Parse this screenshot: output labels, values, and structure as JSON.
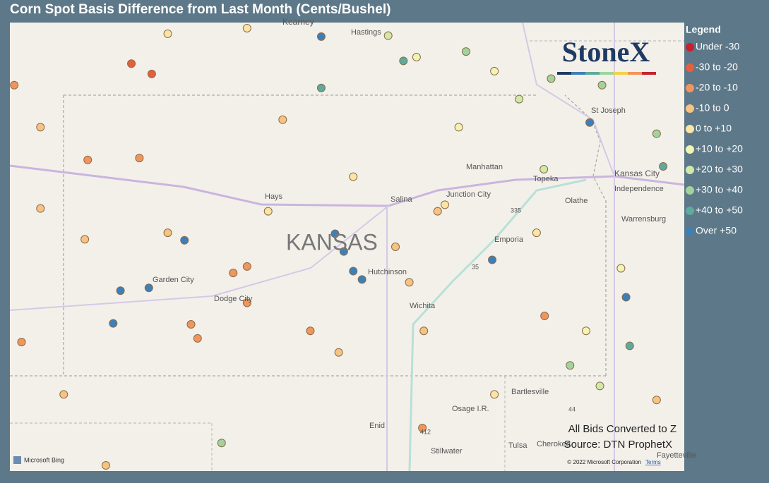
{
  "title": "Corn Spot Basis Difference from Last Month (Cents/Bushel)",
  "legend": {
    "title": "Legend",
    "bins": [
      {
        "name": "Under -30",
        "color": "#c8202c"
      },
      {
        "name": "-30 to -20",
        "color": "#e4603c"
      },
      {
        "name": "-20 to -10",
        "color": "#f0965c"
      },
      {
        "name": "-10 to 0",
        "color": "#f6c480"
      },
      {
        "name": "0 to +10",
        "color": "#fbe4a4"
      },
      {
        "name": "+10 to +20",
        "color": "#f2f4b2"
      },
      {
        "name": "+20 to +30",
        "color": "#d0e8a8"
      },
      {
        "name": "+30 to +40",
        "color": "#a0d49c"
      },
      {
        "name": "+40 to +50",
        "color": "#5eaa9c"
      },
      {
        "name": "Over +50",
        "color": "#3d80b8"
      }
    ]
  },
  "map": {
    "lonlim": [
      -102.79,
      -93.52
    ],
    "latlim": [
      35.98,
      40.78
    ],
    "points": [
      {
        "lon": -101.12,
        "lat": 40.34,
        "bin": 1
      },
      {
        "lon": -100.84,
        "lat": 40.23,
        "bin": 1
      },
      {
        "lon": -102.73,
        "lat": 40.11,
        "bin": 2
      },
      {
        "lon": -101.72,
        "lat": 39.31,
        "bin": 2
      },
      {
        "lon": -101.01,
        "lat": 39.33,
        "bin": 2
      },
      {
        "lon": -102.37,
        "lat": 38.79,
        "bin": 3
      },
      {
        "lon": -100.62,
        "lat": 38.53,
        "bin": 3
      },
      {
        "lon": -99.53,
        "lat": 38.17,
        "bin": 2
      },
      {
        "lon": -99.72,
        "lat": 38.1,
        "bin": 2
      },
      {
        "lon": -101.27,
        "lat": 37.91,
        "bin": 9
      },
      {
        "lon": -100.88,
        "lat": 37.94,
        "bin": 9
      },
      {
        "lon": -101.37,
        "lat": 37.56,
        "bin": 9
      },
      {
        "lon": -100.39,
        "lat": 38.45,
        "bin": 9
      },
      {
        "lon": -98.51,
        "lat": 40.63,
        "bin": 9
      },
      {
        "lon": -98.32,
        "lat": 38.52,
        "bin": 9
      },
      {
        "lon": -98.2,
        "lat": 38.33,
        "bin": 9
      },
      {
        "lon": -98.07,
        "lat": 38.12,
        "bin": 9
      },
      {
        "lon": -97.95,
        "lat": 38.03,
        "bin": 9
      },
      {
        "lon": -96.16,
        "lat": 38.24,
        "bin": 9
      },
      {
        "lon": -94.82,
        "lat": 39.71,
        "bin": 9
      },
      {
        "lon": -94.32,
        "lat": 37.84,
        "bin": 9
      },
      {
        "lon": -98.51,
        "lat": 40.08,
        "bin": 8
      },
      {
        "lon": -97.38,
        "lat": 40.37,
        "bin": 8
      },
      {
        "lon": -94.27,
        "lat": 37.32,
        "bin": 8
      },
      {
        "lon": -96.52,
        "lat": 40.47,
        "bin": 7
      },
      {
        "lon": -95.35,
        "lat": 40.18,
        "bin": 7
      },
      {
        "lon": -95.09,
        "lat": 37.11,
        "bin": 7
      },
      {
        "lon": -99.88,
        "lat": 36.28,
        "bin": 7
      },
      {
        "lon": -97.59,
        "lat": 40.64,
        "bin": 6
      },
      {
        "lon": -95.79,
        "lat": 39.96,
        "bin": 6
      },
      {
        "lon": -95.45,
        "lat": 39.21,
        "bin": 6
      },
      {
        "lon": -93.81,
        "lat": 39.24,
        "bin": 8
      },
      {
        "lon": -94.65,
        "lat": 40.11,
        "bin": 7
      },
      {
        "lon": -96.91,
        "lat": 38.76,
        "bin": 3
      },
      {
        "lon": -97.49,
        "lat": 38.38,
        "bin": 3
      },
      {
        "lon": -97.1,
        "lat": 37.48,
        "bin": 3
      },
      {
        "lon": -100.3,
        "lat": 37.55,
        "bin": 2
      },
      {
        "lon": -99.53,
        "lat": 37.78,
        "bin": 2
      },
      {
        "lon": -98.66,
        "lat": 37.48,
        "bin": 2
      },
      {
        "lon": -95.44,
        "lat": 37.64,
        "bin": 2
      },
      {
        "lon": -98.27,
        "lat": 37.25,
        "bin": 3
      },
      {
        "lon": -97.3,
        "lat": 38.0,
        "bin": 3
      },
      {
        "lon": -101.76,
        "lat": 38.46,
        "bin": 3
      },
      {
        "lon": -102.37,
        "lat": 39.66,
        "bin": 3
      },
      {
        "lon": -99.04,
        "lat": 39.74,
        "bin": 3
      },
      {
        "lon": -99.24,
        "lat": 38.76,
        "bin": 4
      },
      {
        "lon": -98.07,
        "lat": 39.13,
        "bin": 4
      },
      {
        "lon": -96.62,
        "lat": 39.66,
        "bin": 5
      },
      {
        "lon": -96.81,
        "lat": 38.83,
        "bin": 4
      },
      {
        "lon": -94.87,
        "lat": 37.48,
        "bin": 5
      },
      {
        "lon": -97.2,
        "lat": 40.41,
        "bin": 5
      },
      {
        "lon": -96.13,
        "lat": 40.26,
        "bin": 5
      },
      {
        "lon": -99.53,
        "lat": 40.72,
        "bin": 4
      },
      {
        "lon": -100.62,
        "lat": 40.66,
        "bin": 4
      },
      {
        "lon": -101.47,
        "lat": 36.04,
        "bin": 3
      },
      {
        "lon": -97.12,
        "lat": 36.44,
        "bin": 2
      },
      {
        "lon": -93.9,
        "lat": 36.74,
        "bin": 3
      },
      {
        "lon": -93.9,
        "lat": 39.59,
        "bin": 7
      },
      {
        "lon": -100.21,
        "lat": 37.4,
        "bin": 2
      },
      {
        "lon": -95.55,
        "lat": 38.53,
        "bin": 4
      },
      {
        "lon": -94.39,
        "lat": 38.15,
        "bin": 5
      },
      {
        "lon": -94.68,
        "lat": 36.89,
        "bin": 6
      },
      {
        "lon": -102.63,
        "lat": 37.36,
        "bin": 2
      },
      {
        "lon": -102.05,
        "lat": 36.8,
        "bin": 3
      },
      {
        "lon": -96.13,
        "lat": 36.8,
        "bin": 4
      }
    ],
    "places": [
      "Kearney",
      "Hastings",
      "St Joseph",
      "Manhattan",
      "Topeka",
      "Kansas City",
      "Independence",
      "Olathe",
      "Warrensburg",
      "Hays",
      "Salina",
      "Junction City",
      "KANSAS",
      "Emporia",
      "Garden City",
      "Dodge City",
      "Hutchinson",
      "Wichita",
      "Bartlesville",
      "Osage I.R.",
      "Enid",
      "Stillwater",
      "Tulsa",
      "Cherokee",
      "Fayetteville",
      "335",
      "35",
      "44",
      "412"
    ]
  },
  "logo": "StoneX",
  "notes": [
    "All Bids Converted to Z",
    "Source: DTN ProphetX"
  ],
  "attribution": {
    "bing": "Microsoft Bing",
    "copyright": "© 2022 Microsoft Corporation",
    "terms": "Terms"
  }
}
